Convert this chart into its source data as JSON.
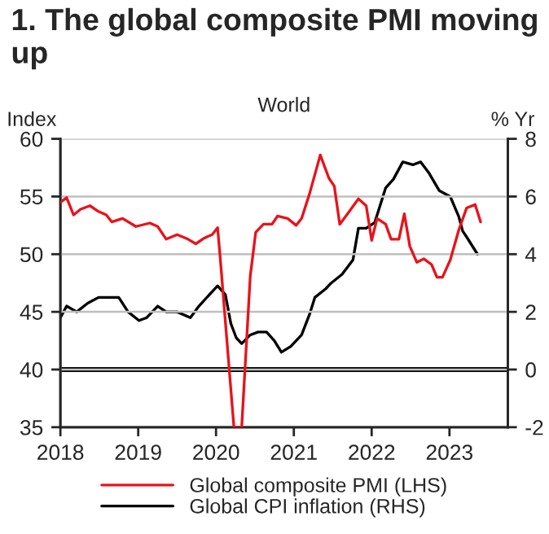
{
  "chart_data": {
    "type": "line",
    "title": "1. The global composite PMI moving up",
    "subtitle": "World",
    "ylabel": "Index",
    "y2label": "% Yr",
    "xlim": [
      2018,
      2023.75
    ],
    "xticks": [
      2018,
      2019,
      2020,
      2021,
      2022,
      2023
    ],
    "ylim": [
      35,
      60
    ],
    "yticks": [
      35,
      40,
      45,
      50,
      55,
      60
    ],
    "y2lim": [
      -2,
      8
    ],
    "y2ticks": [
      -2,
      0,
      2,
      4,
      6,
      8
    ],
    "grid": "y",
    "legend": "bottom",
    "marker": "none",
    "line_style": "solid",
    "ref_lines": [
      {
        "axis": "y2",
        "value": 0,
        "color": "#000000"
      }
    ],
    "series": [
      {
        "name": "Global composite PMI (LHS)",
        "color": "#e8131b",
        "x": [
          2018.0,
          2018.08,
          2018.17,
          2018.26,
          2018.38,
          2018.49,
          2018.59,
          2018.66,
          2018.8,
          2018.97,
          2019.15,
          2019.25,
          2019.36,
          2019.5,
          2019.64,
          2019.74,
          2019.85,
          2019.95,
          2020.02,
          2020.05,
          2020.23,
          2020.33,
          2020.44,
          2020.51,
          2020.61,
          2020.72,
          2020.79,
          2020.92,
          2021.03,
          2021.1,
          2021.2,
          2021.34,
          2021.45,
          2021.52,
          2021.59,
          2021.69,
          2021.83,
          2021.93,
          2022.0,
          2022.07,
          2022.18,
          2022.25,
          2022.35,
          2022.42,
          2022.49,
          2022.58,
          2022.67,
          2022.77,
          2022.84,
          2022.91,
          2023.01,
          2023.12,
          2023.22,
          2023.33,
          2023.4
        ],
        "values": [
          54.5,
          54.9,
          53.4,
          53.9,
          54.2,
          53.7,
          53.4,
          52.8,
          53.1,
          52.4,
          52.7,
          52.4,
          51.3,
          51.7,
          51.3,
          50.9,
          51.4,
          51.7,
          52.3,
          50.0,
          35,
          35,
          48.1,
          51.9,
          52.6,
          52.6,
          53.3,
          53.1,
          52.5,
          53.1,
          55.2,
          58.6,
          56.6,
          55.9,
          52.6,
          53.5,
          54.8,
          54.2,
          51.2,
          53.1,
          52.6,
          51.3,
          51.3,
          53.5,
          50.7,
          49.3,
          49.6,
          49.1,
          48.0,
          48.0,
          49.5,
          52.1,
          54.0,
          54.3,
          52.8
        ]
      },
      {
        "name": "Global CPI inflation (RHS)",
        "color": "#000000",
        "axis": "y2",
        "x": [
          2018.0,
          2018.08,
          2018.21,
          2018.35,
          2018.49,
          2018.63,
          2018.75,
          2018.87,
          2019.01,
          2019.11,
          2019.25,
          2019.36,
          2019.5,
          2019.67,
          2019.78,
          2019.95,
          2020.02,
          2020.12,
          2020.19,
          2020.26,
          2020.33,
          2020.44,
          2020.54,
          2020.65,
          2020.75,
          2020.84,
          2020.96,
          2021.1,
          2021.2,
          2021.27,
          2021.41,
          2021.48,
          2021.62,
          2021.76,
          2021.83,
          2021.93,
          2022.04,
          2022.18,
          2022.28,
          2022.4,
          2022.53,
          2022.63,
          2022.74,
          2022.87,
          2023.01,
          2023.12,
          2023.17,
          2023.22,
          2023.36
        ],
        "values": [
          1.8,
          2.2,
          2.0,
          2.3,
          2.5,
          2.5,
          2.5,
          2.0,
          1.7,
          1.8,
          2.2,
          2.0,
          2.0,
          1.8,
          2.2,
          2.7,
          2.9,
          2.6,
          1.6,
          1.1,
          0.9,
          1.2,
          1.3,
          1.3,
          1.0,
          0.6,
          0.8,
          1.2,
          1.9,
          2.5,
          2.8,
          3.0,
          3.3,
          3.8,
          4.9,
          4.9,
          5.1,
          6.3,
          6.6,
          7.2,
          7.1,
          7.2,
          6.8,
          6.2,
          6.0,
          5.3,
          4.8,
          4.6,
          4.0
        ]
      }
    ]
  }
}
